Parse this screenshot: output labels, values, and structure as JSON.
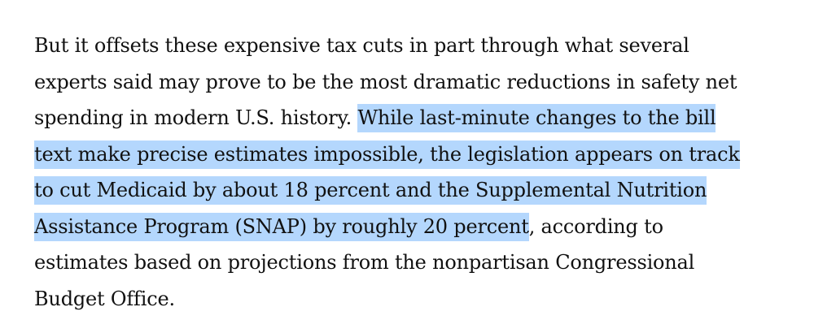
{
  "article": {
    "lines": [
      {
        "before": "But it offsets these expensive tax cuts in part through what several",
        "selected": "",
        "after": ""
      },
      {
        "before": "experts said may prove to be the most dramatic reductions in safety net",
        "selected": "",
        "after": ""
      },
      {
        "before": "spending in modern U.S. history. ",
        "selected": "While last-minute changes to the bill",
        "after": ""
      },
      {
        "before": "",
        "selected": "text make precise estimates impossible, the legislation appears on track",
        "after": ""
      },
      {
        "before": "",
        "selected": "to cut Medicaid by about 18 percent and the Supplemental Nutrition",
        "after": ""
      },
      {
        "before": "",
        "selected": "Assistance Program (SNAP) by roughly 20 percent",
        "after": ", according to"
      },
      {
        "before": "estimates based on projections from the nonpartisan Congressional",
        "selected": "",
        "after": ""
      },
      {
        "before": "Budget Office.",
        "selected": "",
        "after": ""
      }
    ],
    "selection_color": "#b4d7fd"
  }
}
